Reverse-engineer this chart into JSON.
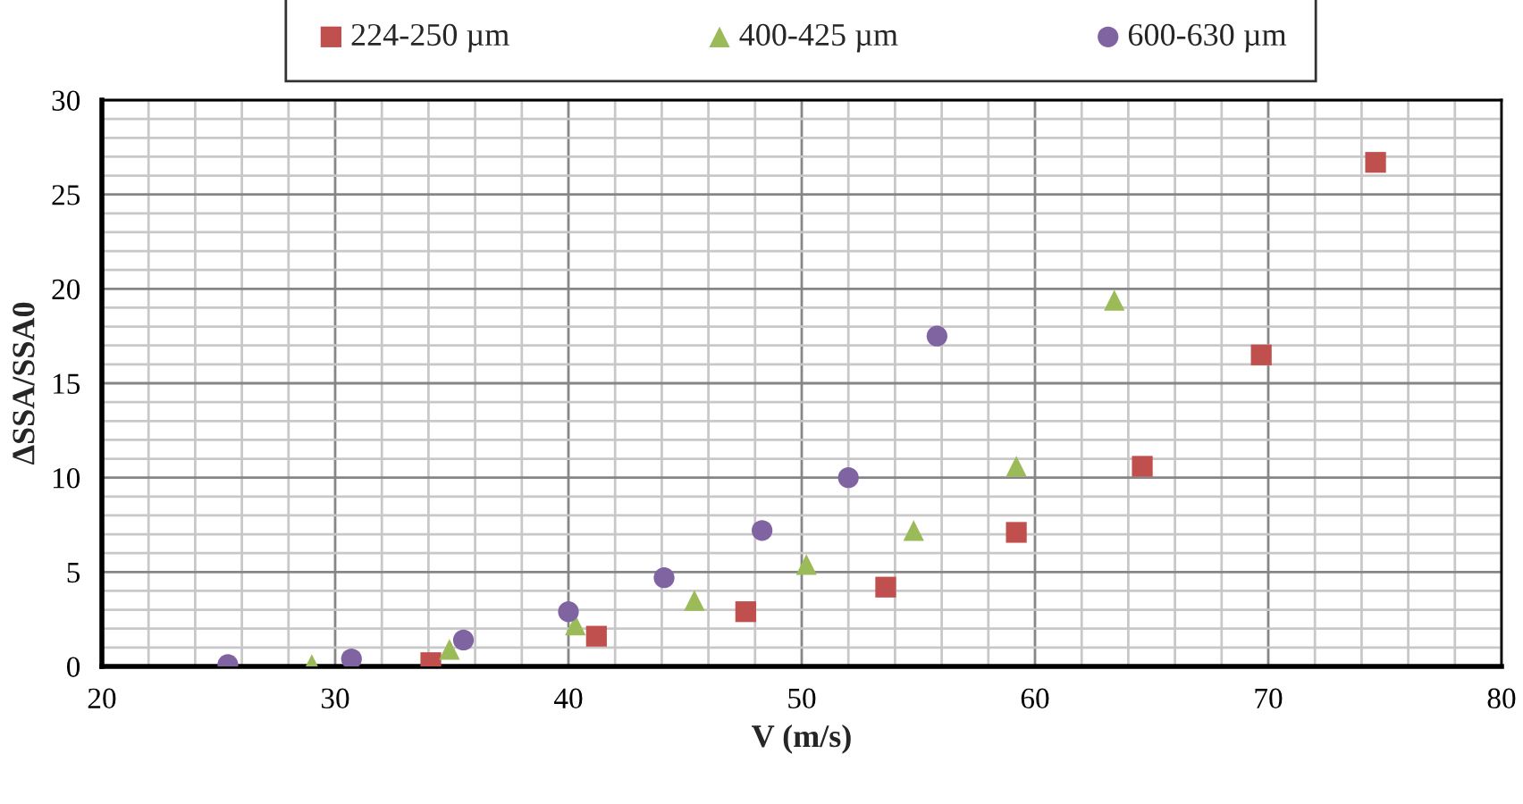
{
  "chart_data": {
    "type": "scatter",
    "xlabel": "V (m/s)",
    "ylabel": "ΔSSA/SSA0",
    "xlim": [
      20,
      80
    ],
    "xticks": [
      20,
      30,
      40,
      50,
      60,
      70,
      80
    ],
    "ylim": [
      0,
      30
    ],
    "yticks": [
      0,
      5,
      10,
      15,
      20,
      25,
      30
    ],
    "grid": true,
    "legend": "top",
    "series": [
      {
        "name": "224-250 µm",
        "color": "#c0504d",
        "marker": "square",
        "x": [
          34.1,
          41.2,
          47.6,
          53.6,
          59.2,
          64.6,
          69.7,
          74.6
        ],
        "values": [
          0.2,
          1.6,
          2.9,
          4.2,
          7.1,
          10.6,
          16.5,
          26.7
        ]
      },
      {
        "name": "400-425 µm",
        "color": "#9bbb59",
        "marker": "triangle",
        "x": [
          29.0,
          34.9,
          40.3,
          45.4,
          50.2,
          54.8,
          59.2,
          63.4
        ],
        "values": [
          0.1,
          0.9,
          2.2,
          3.5,
          5.4,
          7.2,
          10.6,
          19.4
        ]
      },
      {
        "name": "600-630 µm",
        "color": "#8064a2",
        "marker": "circle",
        "x": [
          25.4,
          30.7,
          35.5,
          40.0,
          44.1,
          48.3,
          52.0,
          55.8
        ],
        "values": [
          0.1,
          0.4,
          1.4,
          2.9,
          4.7,
          7.2,
          10.0,
          17.5
        ]
      }
    ]
  }
}
